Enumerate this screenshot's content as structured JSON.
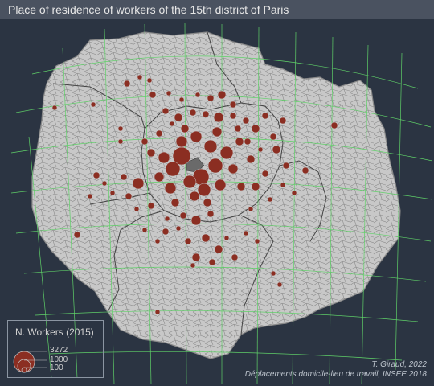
{
  "title": "Place of residence of workers of the 15th district of Paris",
  "legend": {
    "title": "N. Workers (2015)",
    "values": [
      "3272",
      "1000",
      "100"
    ]
  },
  "credits": {
    "author": "T. Giraud, 2022",
    "source": "Déplacements domicile-lieu de travail, INSEE 2018"
  },
  "colors": {
    "background": "#2b3442",
    "land": "#c8c8c8",
    "commune_border": "#8a8a8a",
    "dept_border": "#444444",
    "graticule": "#5fd068",
    "symbol": "#8b2e22",
    "paris15": "#6a6a6a",
    "title_band": "#4a5260"
  }
}
